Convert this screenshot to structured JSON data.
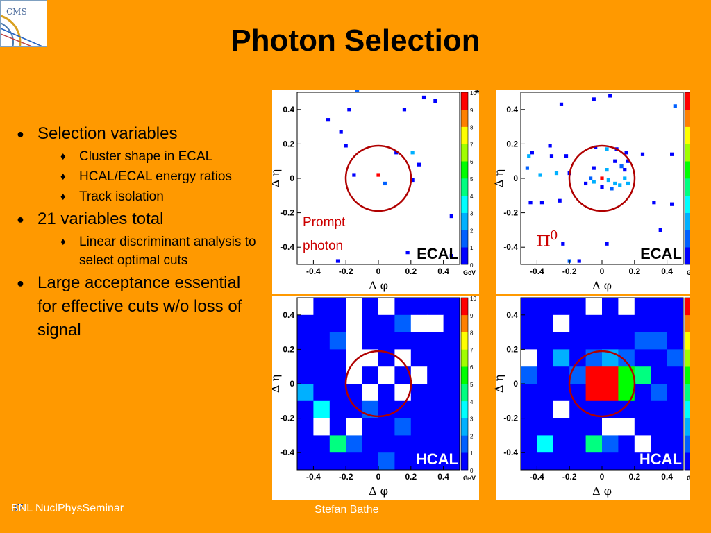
{
  "logo": {
    "text": "CMS"
  },
  "title": "Photon Selection",
  "bullets": [
    {
      "text": "Selection variables",
      "sub": [
        "Cluster shape in ECAL",
        "HCAL/ECAL energy ratios",
        "Track isolation"
      ]
    },
    {
      "text": "21 variables total",
      "sub": [
        "Linear discriminant analysis to select optimal cuts"
      ]
    },
    {
      "text": "Large acceptance essential for effective cuts w/o loss of signal",
      "sub": []
    }
  ],
  "symbols": {
    "bullet": "●",
    "sub_bullet": "♦"
  },
  "footer": {
    "left": "BNL NuclPhysSeminar",
    "right": "Stefan Bathe",
    "slide_number": "37"
  },
  "chart_common": {
    "xlabel": "Δ φ",
    "ylabel": "Δ η",
    "xticks": [
      "-0.4",
      "-0.2",
      "0",
      "0.2",
      "0.4"
    ],
    "yticks": [
      "0.4",
      "0.2",
      "0",
      "-0.2",
      "-0.4"
    ],
    "colorbar_ticks": [
      "10",
      "9",
      "8",
      "7",
      "6",
      "5",
      "4",
      "3",
      "2",
      "1",
      "0"
    ],
    "colorbar_unit": "GeV",
    "colorscale": [
      "#7a00ff",
      "#0000ff",
      "#0060ff",
      "#00b0ff",
      "#00ffff",
      "#00ff80",
      "#00ff00",
      "#a0ff00",
      "#ffff00",
      "#ff8000",
      "#ff0000"
    ]
  },
  "chart_data": [
    {
      "type": "heatmap",
      "detector_label": "ECAL",
      "annotation": [
        "Prompt",
        "photon"
      ],
      "annotation_color": "#cc0000",
      "corner_mark": "*",
      "xlim": [
        -0.5,
        0.5
      ],
      "ylim": [
        -0.5,
        0.5
      ],
      "cells": [
        [
          -0.13,
          0.51,
          2
        ],
        [
          0.28,
          0.47,
          1
        ],
        [
          0.35,
          0.45,
          1
        ],
        [
          -0.18,
          0.4,
          1
        ],
        [
          0.16,
          0.4,
          1
        ],
        [
          -0.31,
          0.34,
          1
        ],
        [
          -0.23,
          0.27,
          1
        ],
        [
          -0.2,
          0.19,
          1
        ],
        [
          0.11,
          0.15,
          1
        ],
        [
          0.21,
          0.15,
          3
        ],
        [
          0.25,
          0.08,
          1
        ],
        [
          -0.15,
          0.02,
          1
        ],
        [
          0,
          0.02,
          10
        ],
        [
          0.04,
          -0.03,
          2
        ],
        [
          0.21,
          -0.01,
          1
        ],
        [
          0.45,
          -0.22,
          1
        ],
        [
          0.18,
          -0.43,
          1
        ],
        [
          -0.25,
          -0.48,
          1
        ],
        [
          0.45,
          -0.45,
          1
        ]
      ]
    },
    {
      "type": "heatmap",
      "detector_label": "ECAL",
      "annotation": [
        "π",
        "0"
      ],
      "annotation_color": "#cc0000",
      "xlim": [
        -0.5,
        0.5
      ],
      "ylim": [
        -0.5,
        0.5
      ],
      "cells": [
        [
          -0.25,
          0.43,
          1
        ],
        [
          -0.05,
          0.46,
          1
        ],
        [
          0.05,
          0.48,
          1
        ],
        [
          0.45,
          0.42,
          2
        ],
        [
          -0.45,
          0.13,
          3
        ],
        [
          -0.43,
          0.15,
          1
        ],
        [
          -0.32,
          0.19,
          1
        ],
        [
          -0.31,
          0.13,
          1
        ],
        [
          -0.22,
          0.13,
          1
        ],
        [
          -0.04,
          0.18,
          1
        ],
        [
          0.03,
          0.17,
          3
        ],
        [
          0.09,
          0.17,
          1
        ],
        [
          0.15,
          0.15,
          1
        ],
        [
          0.25,
          0.14,
          1
        ],
        [
          0.43,
          0.14,
          1
        ],
        [
          -0.46,
          0.06,
          2
        ],
        [
          -0.38,
          0.02,
          3
        ],
        [
          -0.28,
          0.03,
          3
        ],
        [
          -0.2,
          0.03,
          1
        ],
        [
          -0.05,
          0.06,
          1
        ],
        [
          0.03,
          0.05,
          3
        ],
        [
          0.08,
          0.1,
          1
        ],
        [
          0.12,
          0.07,
          2
        ],
        [
          0.14,
          0.05,
          1
        ],
        [
          0.16,
          0.1,
          1
        ],
        [
          -0.1,
          -0.03,
          1
        ],
        [
          -0.07,
          0.0,
          2
        ],
        [
          -0.05,
          -0.02,
          3
        ],
        [
          0.0,
          0.0,
          10
        ],
        [
          0.0,
          -0.05,
          1
        ],
        [
          0.04,
          -0.01,
          3
        ],
        [
          0.06,
          -0.06,
          2
        ],
        [
          0.08,
          -0.03,
          3
        ],
        [
          0.11,
          -0.04,
          3
        ],
        [
          0.14,
          0.0,
          3
        ],
        [
          0.16,
          -0.03,
          3
        ],
        [
          -0.44,
          -0.14,
          1
        ],
        [
          -0.37,
          -0.14,
          1
        ],
        [
          -0.26,
          -0.13,
          1
        ],
        [
          0.32,
          -0.14,
          1
        ],
        [
          0.43,
          -0.15,
          1
        ],
        [
          0.36,
          -0.3,
          1
        ],
        [
          -0.24,
          -0.38,
          1
        ],
        [
          0.03,
          -0.38,
          1
        ],
        [
          -0.2,
          -0.48,
          2
        ],
        [
          -0.14,
          -0.48,
          1
        ]
      ]
    },
    {
      "type": "heatmap",
      "detector_label": "HCAL",
      "xlim": [
        -0.5,
        0.5
      ],
      "ylim": [
        -0.5,
        0.5
      ],
      "grid": 10,
      "rows": [
        [
          "w",
          1,
          1,
          "w",
          1,
          "w",
          1,
          1,
          1,
          1
        ],
        [
          1,
          1,
          1,
          "w",
          1,
          1,
          2,
          "w",
          "w",
          1
        ],
        [
          1,
          1,
          2,
          "w",
          1,
          1,
          1,
          1,
          1,
          1
        ],
        [
          1,
          1,
          1,
          "w",
          "w",
          1,
          "w",
          1,
          1,
          1
        ],
        [
          1,
          1,
          1,
          "w",
          1,
          "w",
          1,
          "w",
          1,
          1
        ],
        [
          3,
          1,
          1,
          1,
          "w",
          1,
          "w",
          1,
          1,
          1
        ],
        [
          1,
          4,
          1,
          1,
          2,
          1,
          1,
          1,
          1,
          1
        ],
        [
          1,
          "w",
          1,
          "w",
          1,
          1,
          2,
          1,
          1,
          1
        ],
        [
          1,
          1,
          5,
          2,
          1,
          1,
          1,
          1,
          1,
          1
        ],
        [
          1,
          1,
          1,
          1,
          1,
          2,
          1,
          1,
          1,
          1
        ]
      ]
    },
    {
      "type": "heatmap",
      "detector_label": "HCAL",
      "xlim": [
        -0.5,
        0.5
      ],
      "ylim": [
        -0.5,
        0.5
      ],
      "grid": 10,
      "rows": [
        [
          1,
          1,
          1,
          1,
          "w",
          1,
          "w",
          1,
          1,
          1
        ],
        [
          1,
          1,
          "w",
          1,
          1,
          1,
          1,
          1,
          1,
          1
        ],
        [
          1,
          1,
          1,
          1,
          1,
          1,
          1,
          2,
          2,
          1
        ],
        [
          "w",
          1,
          3,
          1,
          2,
          3,
          2,
          1,
          1,
          2
        ],
        [
          2,
          1,
          1,
          2,
          10,
          10,
          6,
          5,
          1,
          1
        ],
        [
          1,
          1,
          1,
          1,
          10,
          10,
          6,
          1,
          2,
          1
        ],
        [
          1,
          1,
          "w",
          1,
          1,
          1,
          1,
          1,
          1,
          1
        ],
        [
          1,
          1,
          1,
          1,
          1,
          "w",
          "w",
          1,
          1,
          1
        ],
        [
          1,
          4,
          1,
          1,
          5,
          2,
          1,
          "w",
          1,
          1
        ],
        [
          1,
          1,
          1,
          1,
          1,
          1,
          1,
          1,
          1,
          1
        ]
      ]
    }
  ]
}
